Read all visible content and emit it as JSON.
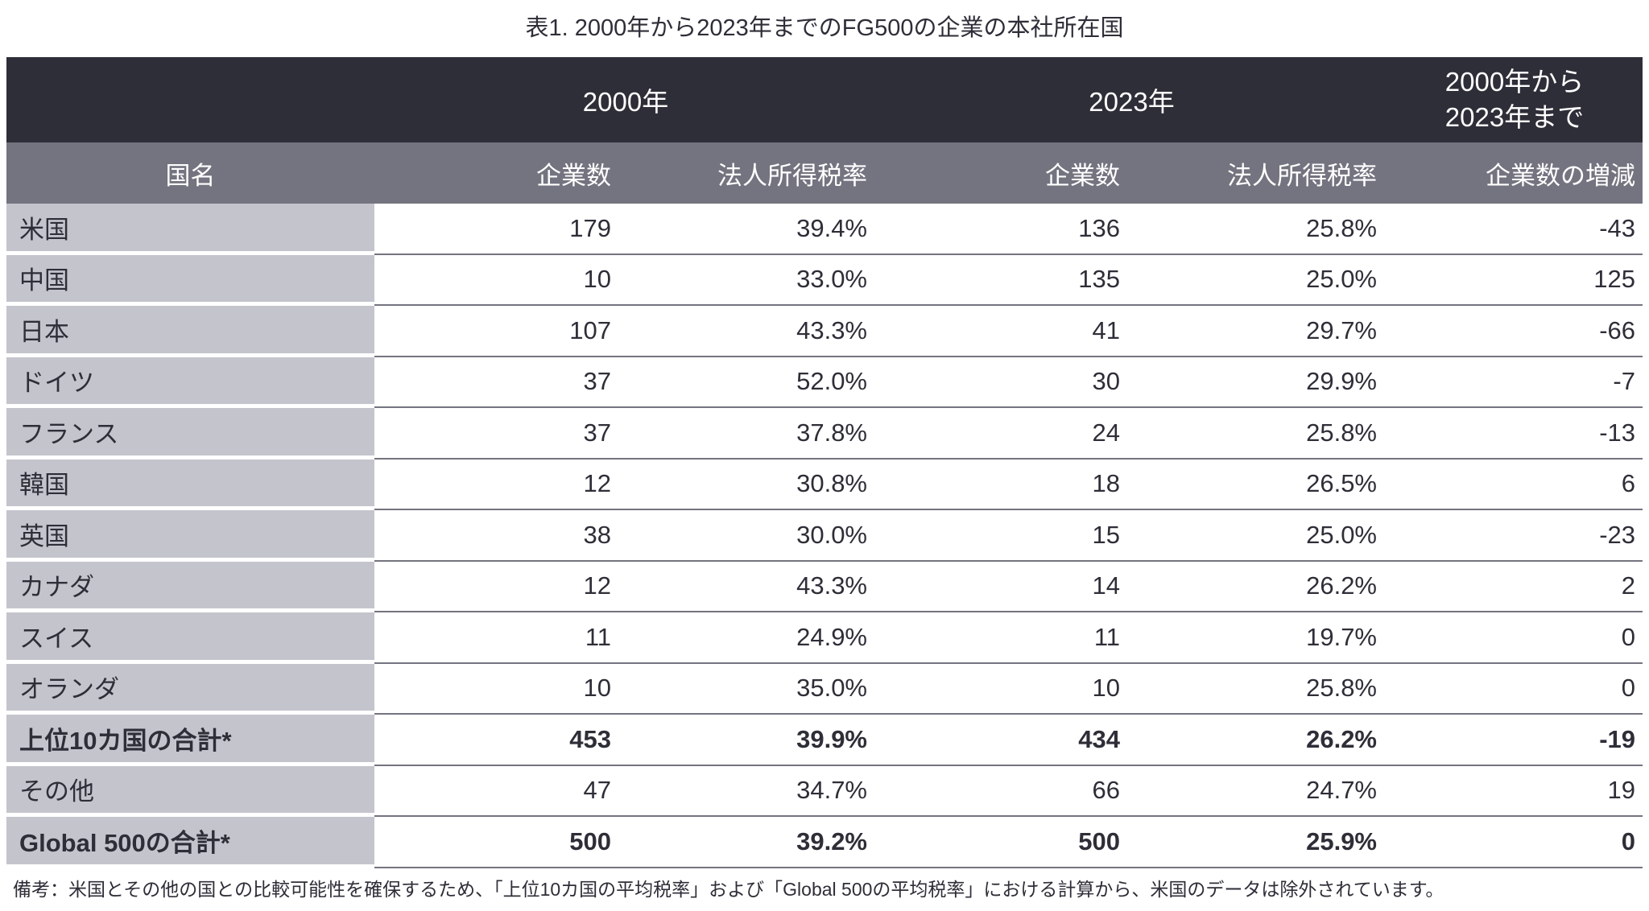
{
  "title": "表1. 2000年から2023年までのFG500の企業の本社所在国",
  "colors": {
    "header_dark": "#2e2e38",
    "header_gray": "#747480",
    "country_column_gray": "#c4c4cd",
    "separator": "#747480",
    "text": "#2e2e38"
  },
  "chart_data": {
    "type": "table",
    "title": "表1. 2000年から2023年までのFG500の企業の本社所在国",
    "column_groups": {
      "y2000": "2000年",
      "y2023": "2023年",
      "change_line1": "2000年から",
      "change_line2": "2023年まで"
    },
    "columns": {
      "country": "国名",
      "companies_2000": "企業数",
      "tax_2000": "法人所得税率",
      "companies_2023": "企業数",
      "tax_2023": "法人所得税率",
      "change": "企業数の増減"
    },
    "rows": [
      {
        "country": "米国",
        "companies_2000": "179",
        "tax_2000": "39.4%",
        "companies_2023": "136",
        "tax_2023": "25.8%",
        "change": "-43",
        "bold": false
      },
      {
        "country": "中国",
        "companies_2000": "10",
        "tax_2000": "33.0%",
        "companies_2023": "135",
        "tax_2023": "25.0%",
        "change": "125",
        "bold": false
      },
      {
        "country": "日本",
        "companies_2000": "107",
        "tax_2000": "43.3%",
        "companies_2023": "41",
        "tax_2023": "29.7%",
        "change": "-66",
        "bold": false
      },
      {
        "country": "ドイツ",
        "companies_2000": "37",
        "tax_2000": "52.0%",
        "companies_2023": "30",
        "tax_2023": "29.9%",
        "change": "-7",
        "bold": false
      },
      {
        "country": "フランス",
        "companies_2000": "37",
        "tax_2000": "37.8%",
        "companies_2023": "24",
        "tax_2023": "25.8%",
        "change": "-13",
        "bold": false
      },
      {
        "country": "韓国",
        "companies_2000": "12",
        "tax_2000": "30.8%",
        "companies_2023": "18",
        "tax_2023": "26.5%",
        "change": "6",
        "bold": false
      },
      {
        "country": "英国",
        "companies_2000": "38",
        "tax_2000": "30.0%",
        "companies_2023": "15",
        "tax_2023": "25.0%",
        "change": "-23",
        "bold": false
      },
      {
        "country": "カナダ",
        "companies_2000": "12",
        "tax_2000": "43.3%",
        "companies_2023": "14",
        "tax_2023": "26.2%",
        "change": "2",
        "bold": false
      },
      {
        "country": "スイス",
        "companies_2000": "11",
        "tax_2000": "24.9%",
        "companies_2023": "11",
        "tax_2023": "19.7%",
        "change": "0",
        "bold": false
      },
      {
        "country": "オランダ",
        "companies_2000": "10",
        "tax_2000": "35.0%",
        "companies_2023": "10",
        "tax_2023": "25.8%",
        "change": "0",
        "bold": false
      },
      {
        "country": "上位10カ国の合計*",
        "companies_2000": "453",
        "tax_2000": "39.9%",
        "companies_2023": "434",
        "tax_2023": "26.2%",
        "change": "-19",
        "bold": true
      },
      {
        "country": "その他",
        "companies_2000": "47",
        "tax_2000": "34.7%",
        "companies_2023": "66",
        "tax_2023": "24.7%",
        "change": "19",
        "bold": false
      },
      {
        "country": "Global 500の合計*",
        "companies_2000": "500",
        "tax_2000": "39.2%",
        "companies_2023": "500",
        "tax_2023": "25.9%",
        "change": "0",
        "bold": true
      }
    ],
    "footnote": "備考：米国とその他の国との比較可能性を確保するため、「上位10カ国の平均税率」および「Global 500の平均税率」における計算から、米国のデータは除外されています。"
  }
}
